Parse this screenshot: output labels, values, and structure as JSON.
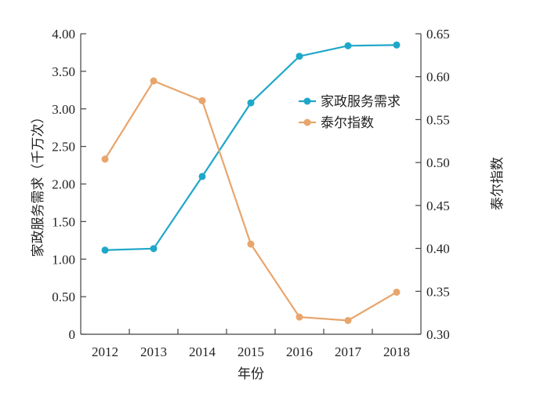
{
  "chart_data": {
    "type": "line",
    "categories": [
      "2012",
      "2013",
      "2014",
      "2015",
      "2016",
      "2017",
      "2018"
    ],
    "xlabel": "年份",
    "ylabel_left": "家政服务需求（千万次）",
    "ylabel_right": "泰尔指数",
    "ylim_left": [
      0,
      4.0
    ],
    "ylim_right": [
      0.3,
      0.65
    ],
    "yticks_left": [
      "0",
      "0.50",
      "1.00",
      "1.50",
      "2.00",
      "2.50",
      "3.00",
      "3.50",
      "4.00"
    ],
    "yticks_right": [
      "0.30",
      "0.35",
      "0.40",
      "0.45",
      "0.50",
      "0.55",
      "0.60",
      "0.65"
    ],
    "legend_position": "upper-right-inside",
    "grid": false,
    "series": [
      {
        "name": "家政服务需求",
        "axis": "left",
        "color": "#1fa7c8",
        "values": [
          1.12,
          1.14,
          2.1,
          3.08,
          3.7,
          3.84,
          3.85
        ]
      },
      {
        "name": "泰尔指数",
        "axis": "right",
        "color": "#e8a56c",
        "values": [
          0.504,
          0.595,
          0.572,
          0.405,
          0.32,
          0.316,
          0.349
        ]
      }
    ]
  }
}
